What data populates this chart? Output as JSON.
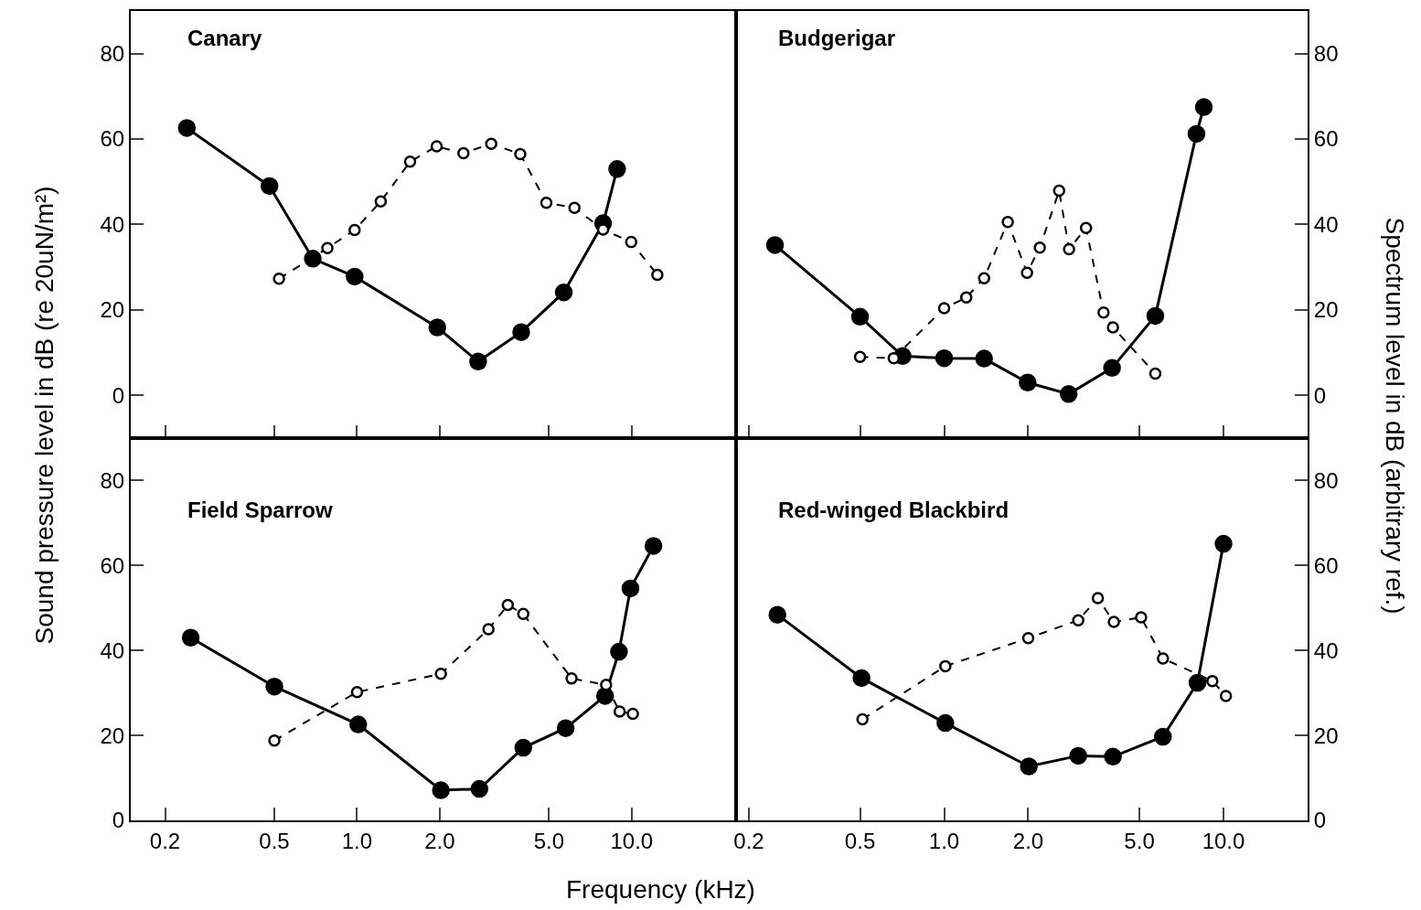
{
  "chart_data": [
    {
      "type": "line",
      "title": "Canary",
      "ylabel": "Sound pressure level in dB (re 20uN/m²)",
      "log": "x",
      "xlim": [
        0.15,
        24
      ],
      "xticks": [
        {
          "value": 0.2,
          "label": null
        },
        {
          "value": 0.5,
          "label": null
        },
        {
          "value": 1,
          "label": null
        },
        {
          "value": 2,
          "label": null
        },
        {
          "value": 5,
          "label": null
        },
        {
          "value": 10,
          "label": null
        }
      ],
      "ylim": [
        -10,
        90
      ],
      "yticks": [
        0,
        20,
        40,
        60,
        80
      ],
      "tick_labels": "y",
      "marker": "circle",
      "series": [
        {
          "color": "#000000",
          "line_style": "solid",
          "x": [
            0.24,
            0.48,
            0.69,
            0.98,
            1.96,
            2.76,
            3.96,
            5.66,
            7.87,
            8.85
          ],
          "values": [
            62.6,
            49.0,
            32.0,
            27.8,
            15.9,
            7.9,
            14.8,
            24.1,
            40.3,
            53.0
          ]
        },
        {
          "color": "#000000",
          "line_style": "dashed",
          "x": [
            0.52,
            0.78,
            0.98,
            1.22,
            1.56,
            1.95,
            2.44,
            3.08,
            3.93,
            4.89,
            6.19,
            7.87,
            9.96,
            12.4
          ],
          "values": [
            27.3,
            34.5,
            38.7,
            45.4,
            54.7,
            58.3,
            56.7,
            58.9,
            56.5,
            45.1,
            43.9,
            38.8,
            35.9,
            28.2
          ]
        }
      ]
    },
    {
      "type": "line",
      "title": "Budgerigar",
      "ylabel": "Spectrum level in dB (arbitrary ref.)",
      "log": "x",
      "xlim": [
        0.18,
        20
      ],
      "xticks": [
        {
          "value": 0.2,
          "label": null
        },
        {
          "value": 0.5,
          "label": null
        },
        {
          "value": 1,
          "label": null
        },
        {
          "value": 2,
          "label": null
        },
        {
          "value": 5,
          "label": null
        },
        {
          "value": 10,
          "label": null
        }
      ],
      "ylim": [
        -10,
        90
      ],
      "yticks": [
        0,
        20,
        40,
        60,
        80
      ],
      "tick_labels": "y",
      "marker": "circle",
      "series": [
        {
          "color": "#000000",
          "line_style": "solid",
          "x": [
            0.248,
            0.5,
            0.71,
            1.0,
            1.39,
            1.99,
            2.79,
            3.99,
            5.7,
            8.0,
            8.5
          ],
          "values": [
            35.2,
            18.4,
            9.2,
            8.7,
            8.6,
            3.0,
            0.3,
            6.4,
            18.6,
            61.2,
            67.5
          ]
        },
        {
          "color": "#000000",
          "line_style": "dashed",
          "x": [
            0.5,
            0.66,
            1.0,
            1.2,
            1.39,
            1.69,
            1.98,
            2.2,
            2.58,
            2.8,
            3.22,
            3.72,
            4.02,
            5.7
          ],
          "values": [
            9.0,
            8.7,
            20.4,
            22.9,
            27.4,
            40.6,
            28.7,
            34.6,
            47.9,
            34.2,
            39.2,
            19.4,
            15.9,
            5.1
          ]
        }
      ]
    },
    {
      "type": "line",
      "title": "Field Sparrow",
      "xlabel": "Frequency (kHz)",
      "log": "x",
      "xlim": [
        0.15,
        24
      ],
      "xticks": [
        {
          "value": 0.2,
          "label": "0.2"
        },
        {
          "value": 0.5,
          "label": "0.5"
        },
        {
          "value": 1,
          "label": "1.0"
        },
        {
          "value": 2,
          "label": "2.0"
        },
        {
          "value": 5,
          "label": "5.0"
        },
        {
          "value": 10,
          "label": "10.0"
        }
      ],
      "ylim": [
        0,
        90
      ],
      "yticks": [
        0,
        20,
        40,
        60,
        80
      ],
      "marker": "circle",
      "series": [
        {
          "color": "#000000",
          "line_style": "solid",
          "x": [
            0.248,
            0.5,
            1.01,
            2.02,
            2.79,
            4.03,
            5.75,
            8.0,
            8.99,
            9.9,
            12.0
          ],
          "values": [
            43.0,
            31.5,
            22.6,
            7.1,
            7.4,
            17.1,
            21.7,
            29.3,
            39.7,
            54.6,
            64.6
          ]
        },
        {
          "color": "#000000",
          "line_style": "dashed",
          "x": [
            0.5,
            1.0,
            2.02,
            3.01,
            3.54,
            4.03,
            6.04,
            8.07,
            9.04,
            10.1
          ],
          "values": [
            18.8,
            30.2,
            34.5,
            45.0,
            50.7,
            48.6,
            33.4,
            31.9,
            25.6,
            25.1
          ]
        }
      ]
    },
    {
      "type": "line",
      "title": "Red-winged Blackbird",
      "log": "x",
      "xlim": [
        0.18,
        20
      ],
      "xticks": [
        {
          "value": 0.2,
          "label": "0.2"
        },
        {
          "value": 0.5,
          "label": "0.5"
        },
        {
          "value": 1,
          "label": "1.0"
        },
        {
          "value": 2,
          "label": "2.0"
        },
        {
          "value": 5,
          "label": "5.0"
        },
        {
          "value": 10,
          "label": "10.0"
        }
      ],
      "ylim": [
        0,
        90
      ],
      "yticks": [
        0,
        20,
        40,
        60,
        80
      ],
      "marker": "circle",
      "series": [
        {
          "color": "#000000",
          "line_style": "solid",
          "x": [
            0.253,
            0.506,
            1.01,
            2.01,
            3.02,
            4.02,
            6.07,
            8.07,
            10.0
          ],
          "values": [
            48.4,
            33.5,
            22.9,
            12.7,
            15.2,
            15.0,
            19.7,
            32.4,
            65.1
          ]
        },
        {
          "color": "#000000",
          "line_style": "dashed",
          "x": [
            0.51,
            1.01,
            2.0,
            3.02,
            3.55,
            4.05,
            5.07,
            6.07,
            9.12,
            10.2
          ],
          "values": [
            23.8,
            36.3,
            42.9,
            47.1,
            52.3,
            46.7,
            47.8,
            38.1,
            32.8,
            29.3
          ]
        }
      ]
    }
  ]
}
